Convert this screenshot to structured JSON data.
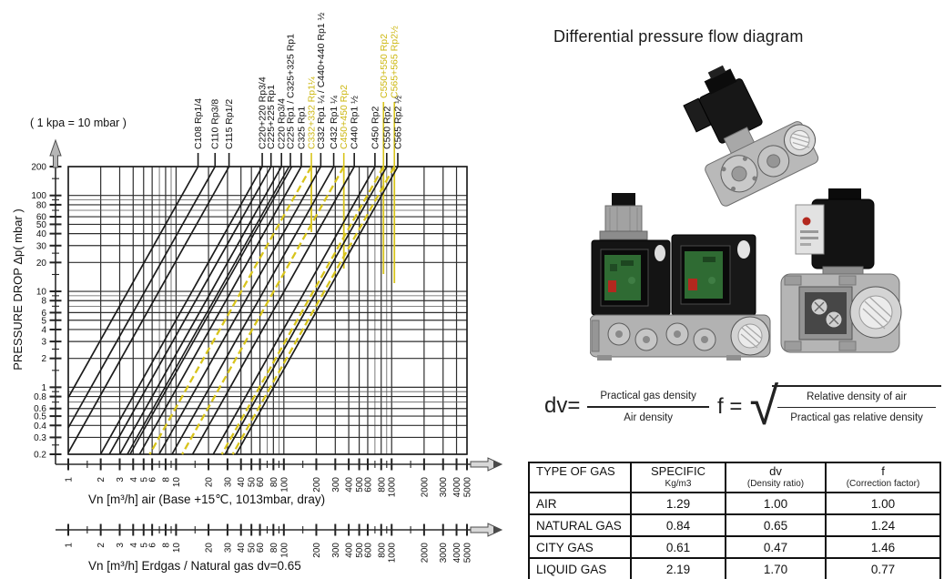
{
  "chart": {
    "note": "( 1 kpa = 10 mbar )",
    "y_axis_label": "PRESSURE DROP   Δp( mbar )",
    "x_axis_air_label": "Vn [m³/h] air (Base +15℃, 1013mbar, dray)",
    "x_axis_gas_label": "Vn [m³/h] Erdgas / Natural gas dv=0.65"
  },
  "chart_data": {
    "type": "line",
    "x_scale": "log",
    "y_scale": "log",
    "x_range": [
      1,
      5000
    ],
    "y_range": [
      0.2,
      200
    ],
    "x_tick_labels": [
      1,
      2,
      3,
      4,
      5,
      6,
      8,
      10,
      20,
      30,
      40,
      50,
      60,
      80,
      100,
      200,
      300,
      400,
      500,
      600,
      800,
      1000,
      2000,
      3000,
      4000,
      5000
    ],
    "y_tick_labels": [
      200,
      100,
      80,
      60,
      50,
      40,
      30,
      20,
      10,
      8,
      6,
      5,
      4,
      3,
      2,
      1,
      0.8,
      0.6,
      0.5,
      0.4,
      0.3,
      0.2
    ],
    "pressure_exponent": 2,
    "series": [
      {
        "label": "C108 Rp1/4",
        "color": "black",
        "flow_at_200mbar": 16
      },
      {
        "label": "C110 Rp3/8",
        "color": "black",
        "flow_at_200mbar": 23
      },
      {
        "label": "C115 Rp1/2",
        "color": "black",
        "flow_at_200mbar": 31
      },
      {
        "label": "C220+220 Rp3/4",
        "color": "black",
        "flow_at_200mbar": 63
      },
      {
        "label": "C225+225 Rp1",
        "color": "black",
        "flow_at_200mbar": 76
      },
      {
        "label": "C220 Rp3/4",
        "color": "black",
        "flow_at_200mbar": 95
      },
      {
        "label": "C225 Rp1 / C325+325 Rp1",
        "color": "black",
        "flow_at_200mbar": 115,
        "heavy": true
      },
      {
        "label": "C325 Rp1",
        "color": "black",
        "flow_at_200mbar": 145
      },
      {
        "label": "C332+332 Rp1¼",
        "color": "yellow",
        "flow_at_200mbar": 180,
        "marker_depth": 72
      },
      {
        "label": "C332 Rp1 ¼ / C440+440 Rp1 ½",
        "color": "black",
        "flow_at_200mbar": 220
      },
      {
        "label": "C432 Rp1 ¼",
        "color": "black",
        "flow_at_200mbar": 290
      },
      {
        "label": "C450+450 Rp2",
        "color": "yellow",
        "flow_at_200mbar": 360,
        "marker_depth": 112
      },
      {
        "label": "C440 Rp1 ½",
        "color": "black",
        "flow_at_200mbar": 450
      },
      {
        "label": "C450 Rp2",
        "color": "black",
        "flow_at_200mbar": 700
      },
      {
        "label": "C550+550 Rp2",
        "color": "yellow",
        "flow_at_200mbar": 840,
        "marker_depth": 118,
        "raised": true
      },
      {
        "label": "C550 Rp2",
        "color": "black",
        "flow_at_200mbar": 900
      },
      {
        "label": "C565+565 Rp2½",
        "color": "yellow",
        "flow_at_200mbar": 1060,
        "marker_depth": 128,
        "raised": true
      },
      {
        "label": "C565 Rp2 ½",
        "color": "black",
        "flow_at_200mbar": 1140
      }
    ]
  },
  "right": {
    "title": "Differential pressure flow diagram",
    "formula_dv": {
      "lhs": "dv=",
      "numerator": "Practical gas density",
      "denominator": "Air density"
    },
    "formula_f": {
      "lhs": "f =",
      "numerator": "Relative density of air",
      "denominator": "Practical gas relative density"
    },
    "table": {
      "headers": [
        {
          "title": "TYPE OF GAS",
          "sub": ""
        },
        {
          "title": "SPECIFIC",
          "sub": "Kg/m3"
        },
        {
          "title": "dv",
          "sub": "(Density ratio)"
        },
        {
          "title": "f",
          "sub": "(Correction factor)"
        }
      ],
      "rows": [
        [
          "AIR",
          "1.29",
          "1.00",
          "1.00"
        ],
        [
          "NATURAL GAS",
          "0.84",
          "0.65",
          "1.24"
        ],
        [
          "CITY GAS",
          "0.61",
          "0.47",
          "1.46"
        ],
        [
          "LIQUID GAS",
          "2.19",
          "1.70",
          "0.77"
        ]
      ]
    },
    "images": [
      {
        "name": "single solenoid gas valve"
      },
      {
        "name": "double block solenoid gas valve"
      },
      {
        "name": "flanged solenoid gas valve"
      }
    ]
  },
  "colors": {
    "accent_yellow": "#d8c41c",
    "line_black": "#1b1b1b",
    "grid_major": "#2e2e2e",
    "grid_minor": "#5a5a5a"
  }
}
